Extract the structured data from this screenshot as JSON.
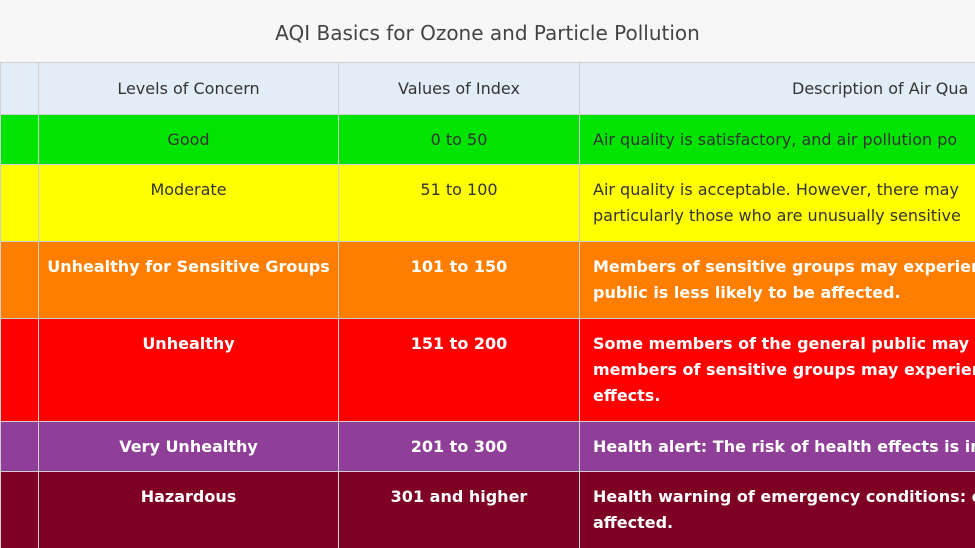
{
  "title": "AQI Basics for Ozone and Particle Pollution",
  "headers": {
    "level": "Levels of Concern",
    "value": "Values of Index",
    "description": "Description of Air Qua"
  },
  "rows": [
    {
      "level": "Good",
      "value": "0 to 50",
      "description": "Air quality is satisfactory, and air pollution po",
      "color": "#00e400"
    },
    {
      "level": "Moderate",
      "value": "51 to 100",
      "description": "Air quality is acceptable. However, there may\nparticularly those who are unusually sensitive",
      "color": "#ffff00"
    },
    {
      "level": "Unhealthy for Sensitive Groups",
      "value": "101 to 150",
      "description": "Members of sensitive groups may experience\npublic is less likely to be affected.",
      "color": "#ff7e00"
    },
    {
      "level": "Unhealthy",
      "value": "151 to 200",
      "description": "Some members of the general public may exp\nmembers of sensitive groups may experience\neffects.",
      "color": "#ff0000"
    },
    {
      "level": "Very Unhealthy",
      "value": "201 to 300",
      "description": "Health alert: The risk of health effects is incre",
      "color": "#8f3f97"
    },
    {
      "level": "Hazardous",
      "value": "301 and higher",
      "description": "Health warning of emergency conditions: eve\naffected.",
      "color": "#7e0023"
    }
  ]
}
